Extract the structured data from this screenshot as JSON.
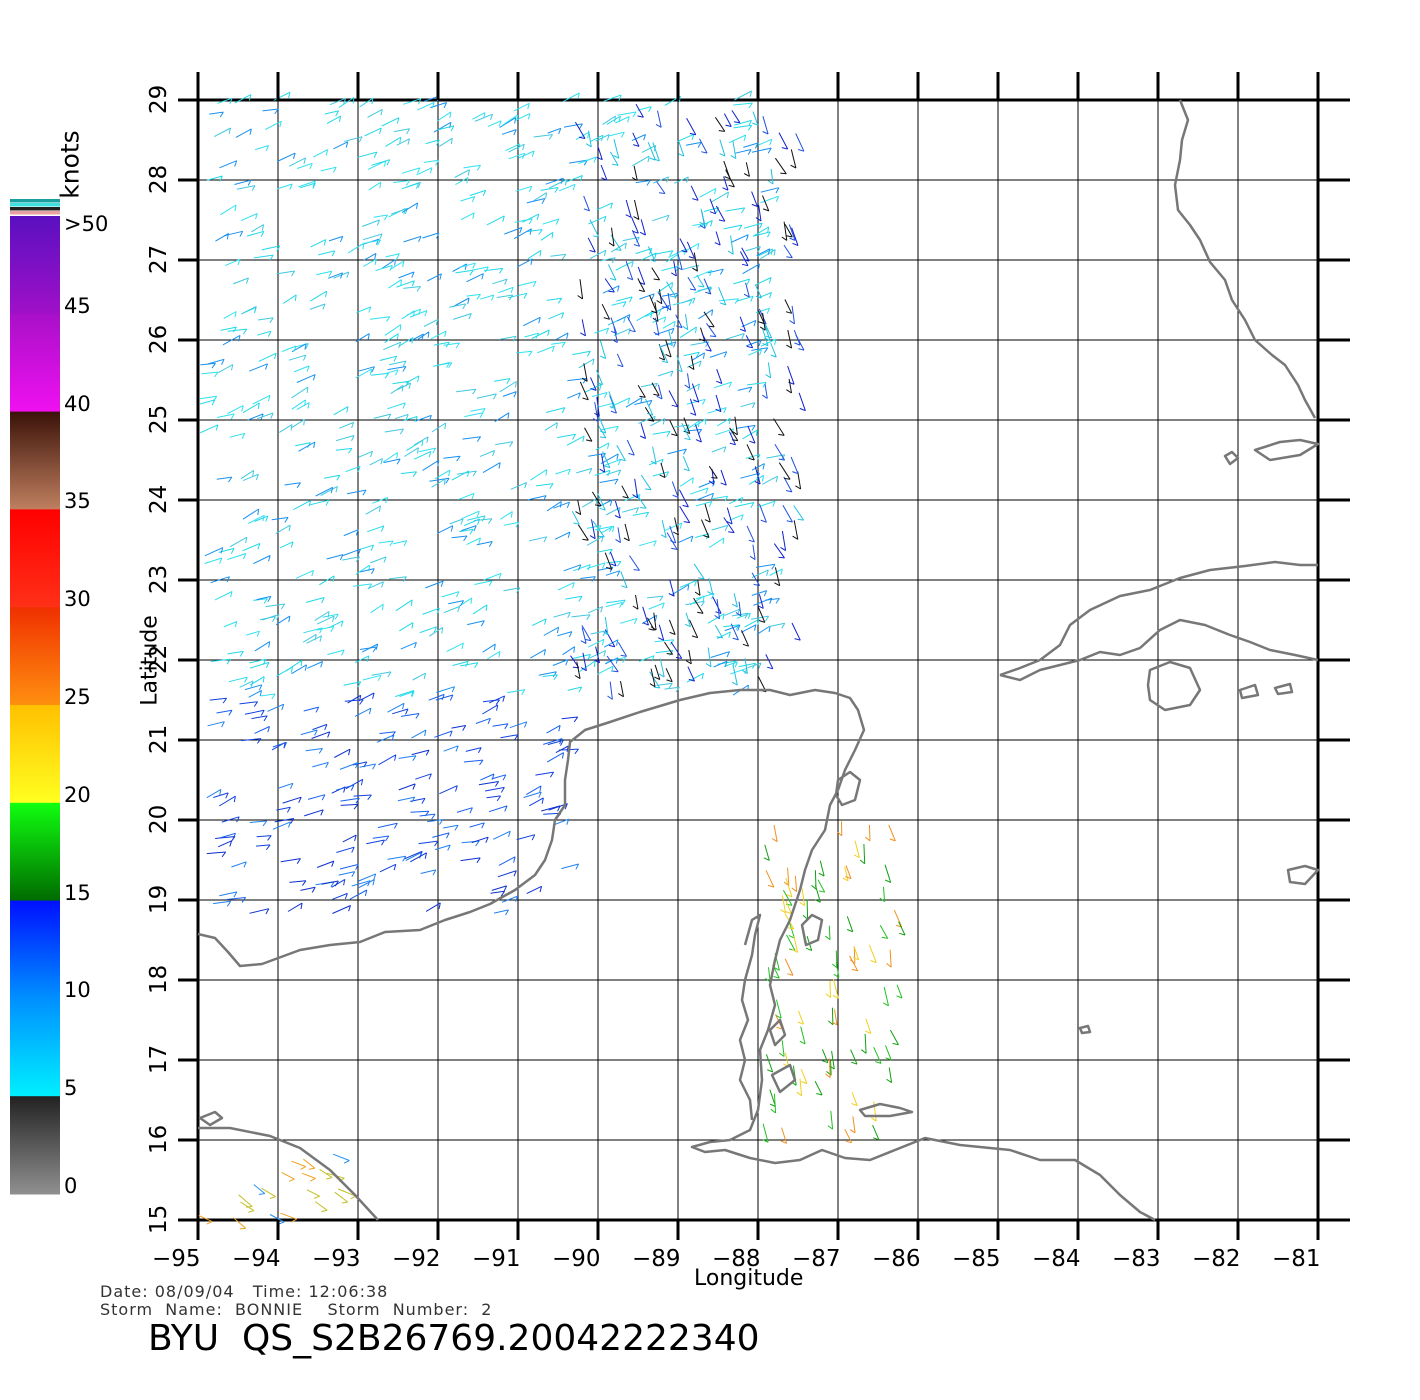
{
  "colorbar": {
    "unit": "knots",
    "top_label": ">50",
    "labels": [
      "45",
      "40",
      "35",
      "30",
      "25",
      "20",
      "15",
      "10",
      "5",
      "0"
    ],
    "segments": [
      {
        "from": 50,
        "to": 45,
        "top": "#5a10c0",
        "bottom": "#a010c8"
      },
      {
        "from": 45,
        "to": 40,
        "top": "#a810c8",
        "bottom": "#f010f0"
      },
      {
        "from": 40,
        "to": 35,
        "top": "#3a1208",
        "bottom": "#c08060"
      },
      {
        "from": 35,
        "to": 30,
        "top": "#ff0000",
        "bottom": "#ff3018"
      },
      {
        "from": 30,
        "to": 25,
        "top": "#f03000",
        "bottom": "#ff9010"
      },
      {
        "from": 25,
        "to": 20,
        "top": "#ffc000",
        "bottom": "#ffff20"
      },
      {
        "from": 20,
        "to": 15,
        "top": "#10ff10",
        "bottom": "#006a00"
      },
      {
        "from": 15,
        "to": 10,
        "top": "#0010ff",
        "bottom": "#0090ff"
      },
      {
        "from": 10,
        "to": 5,
        "top": "#0090ff",
        "bottom": "#00f0ff"
      },
      {
        "from": 5,
        "to": 0,
        "top": "#222222",
        "bottom": "#909090"
      }
    ]
  },
  "map": {
    "lon_range": [
      -95,
      -81
    ],
    "lat_range": [
      15,
      29
    ],
    "lon_ticks": [
      "−95",
      "−94",
      "−93",
      "−92",
      "−91",
      "−90",
      "−89",
      "−88",
      "−87",
      "−86",
      "−85",
      "−84",
      "−83",
      "−82",
      "−81"
    ],
    "lat_ticks": [
      "15",
      "16",
      "17",
      "18",
      "19",
      "20",
      "21",
      "22",
      "23",
      "24",
      "25",
      "26",
      "27",
      "28",
      "29"
    ],
    "xlabel": "Longitude",
    "ylabel": "Latitude",
    "grid": true,
    "coast_color": "#777777"
  },
  "meta": {
    "date_line": "Date: 08/09/04   Time: 12:06:38",
    "storm_line": "Storm  Name:  BONNIE    Storm  Number:  2",
    "title": "BYU  QS_S2B26769.20042222340"
  }
}
